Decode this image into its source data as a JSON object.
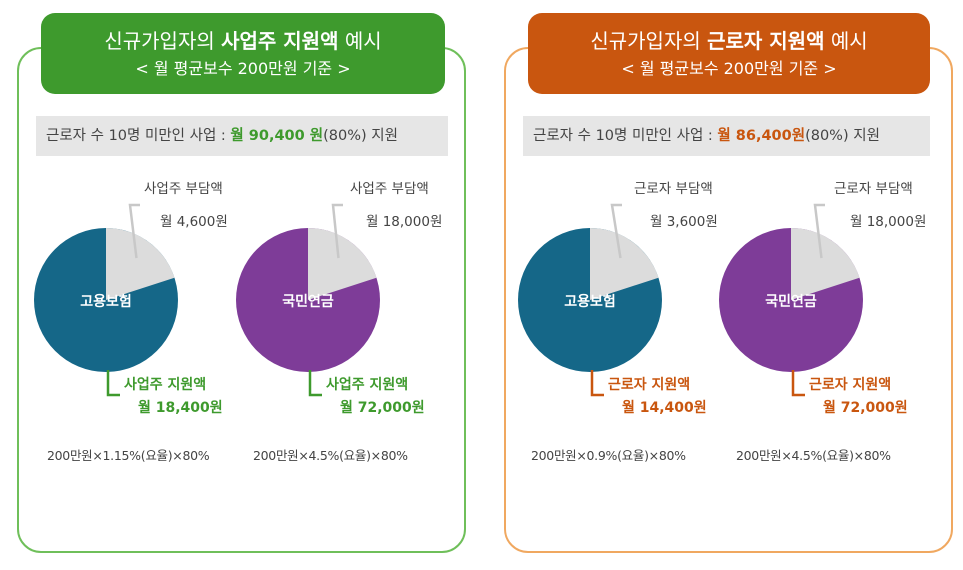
{
  "left": {
    "header_prefix": "신규가입자의 ",
    "header_bold": "사업주 지원액",
    "header_suffix": " 예시",
    "header_sub": "< 월 평균보수 200만원 기준 >",
    "band_text": "근로자 수 10명 미만인 사업 : ",
    "band_highlight": "월 90,400 원",
    "band_suffix": "(80%) 지원",
    "formula1": "200만원×1.15%(요율)×80%",
    "formula2": "200만원×4.5%(요율)×80%"
  },
  "right": {
    "header_prefix": "신규가입자의 ",
    "header_bold": "근로자 지원액",
    "header_suffix": " 예시",
    "header_sub": "< 월 평균보수 200만원 기준 >",
    "band_text": "근로자 수 10명 미만인 사업 : ",
    "band_highlight": "월 86,400원",
    "band_suffix": "(80%) 지원",
    "formula1": "200만원×0.9%(요율)×80%",
    "formula2": "200만원×4.5%(요율)×80%"
  },
  "colors": {
    "employment_insurance": "#156788",
    "national_pension": "#7e3c98",
    "burden_slice": "#dcdcdc",
    "green_accent": "#3e9a2d",
    "orange_accent": "#c9560f"
  },
  "chart_data": [
    {
      "type": "pie",
      "center_label": "고용보험",
      "slices": [
        {
          "label": "사업주 부담액",
          "value_text": "월 4,600원",
          "value": 4600
        },
        {
          "label": "사업주 지원액",
          "value_text": "월 18,400원",
          "value": 18400
        }
      ]
    },
    {
      "type": "pie",
      "center_label": "국민연금",
      "slices": [
        {
          "label": "사업주 부담액",
          "value_text": "월 18,000원",
          "value": 18000
        },
        {
          "label": "사업주 지원액",
          "value_text": "월 72,000원",
          "value": 72000
        }
      ]
    },
    {
      "type": "pie",
      "center_label": "고용보험",
      "slices": [
        {
          "label": "근로자 부담액",
          "value_text": "월 3,600원",
          "value": 3600
        },
        {
          "label": "근로자 지원액",
          "value_text": "월 14,400원",
          "value": 14400
        }
      ]
    },
    {
      "type": "pie",
      "center_label": "국민연금",
      "slices": [
        {
          "label": "근로자 부담액",
          "value_text": "월 18,000원",
          "value": 18000
        },
        {
          "label": "근로자 지원액",
          "value_text": "월 72,000원",
          "value": 72000
        }
      ]
    }
  ]
}
